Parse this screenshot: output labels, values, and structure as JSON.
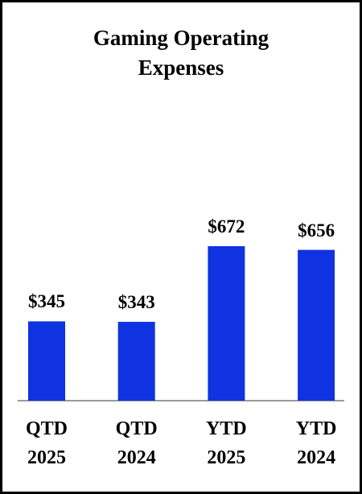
{
  "chart_data": {
    "type": "bar",
    "title": "Gaming Operating Expenses",
    "categories": [
      "QTD 2025",
      "QTD 2024",
      "YTD 2025",
      "YTD 2024"
    ],
    "values": [
      345,
      343,
      672,
      656
    ],
    "value_labels": [
      "$345",
      "$343",
      "$672",
      "$656"
    ],
    "color": "#0f33e0"
  }
}
